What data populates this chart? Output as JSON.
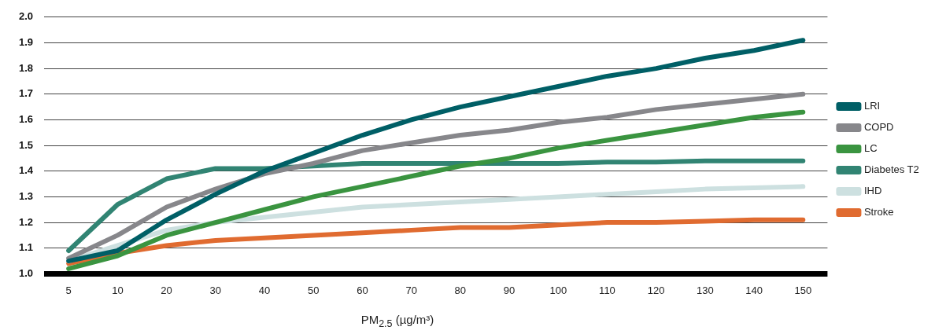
{
  "chart_data": {
    "type": "line",
    "xlabel": "PM$_{2.5}$ (µg/m³)",
    "categories": [
      "5",
      "10",
      "20",
      "30",
      "40",
      "50",
      "60",
      "70",
      "80",
      "90",
      "100",
      "110",
      "120",
      "130",
      "140",
      "150"
    ],
    "series": [
      {
        "name": "LRI",
        "color": "#005f66",
        "values": [
          1.05,
          1.09,
          1.21,
          1.31,
          1.4,
          1.47,
          1.54,
          1.6,
          1.65,
          1.69,
          1.73,
          1.77,
          1.8,
          1.84,
          1.87,
          1.91
        ]
      },
      {
        "name": "COPD",
        "color": "#87878b",
        "values": [
          1.06,
          1.15,
          1.26,
          1.33,
          1.39,
          1.43,
          1.48,
          1.51,
          1.54,
          1.56,
          1.59,
          1.61,
          1.64,
          1.66,
          1.68,
          1.7
        ]
      },
      {
        "name": "LC",
        "color": "#3a9440",
        "values": [
          1.02,
          1.07,
          1.15,
          1.2,
          1.25,
          1.3,
          1.34,
          1.38,
          1.42,
          1.45,
          1.49,
          1.52,
          1.55,
          1.58,
          1.61,
          1.63
        ]
      },
      {
        "name": "Diabetes T2",
        "color": "#318473",
        "values": [
          1.09,
          1.27,
          1.37,
          1.41,
          1.41,
          1.42,
          1.43,
          1.43,
          1.43,
          1.43,
          1.43,
          1.435,
          1.435,
          1.44,
          1.44,
          1.44
        ]
      },
      {
        "name": "IHD",
        "color": "#cde0e0",
        "values": [
          1.05,
          1.11,
          1.17,
          1.2,
          1.22,
          1.24,
          1.26,
          1.27,
          1.28,
          1.29,
          1.3,
          1.31,
          1.32,
          1.33,
          1.335,
          1.34
        ]
      },
      {
        "name": "Stroke",
        "color": "#e06b30",
        "values": [
          1.04,
          1.08,
          1.11,
          1.13,
          1.14,
          1.15,
          1.16,
          1.17,
          1.18,
          1.18,
          1.19,
          1.2,
          1.2,
          1.205,
          1.21,
          1.21
        ]
      }
    ],
    "ylim": [
      1.0,
      2.0
    ],
    "yticks": [
      {
        "value": 1,
        "label": "1.0"
      },
      1.1,
      1.2,
      1.3,
      1.4,
      1.5,
      1.6,
      1.7,
      1.8,
      1.9,
      {
        "value": 2,
        "label": "2.0"
      }
    ],
    "grid": "y",
    "legend": "right",
    "marker": "none",
    "line_style": "solid"
  }
}
